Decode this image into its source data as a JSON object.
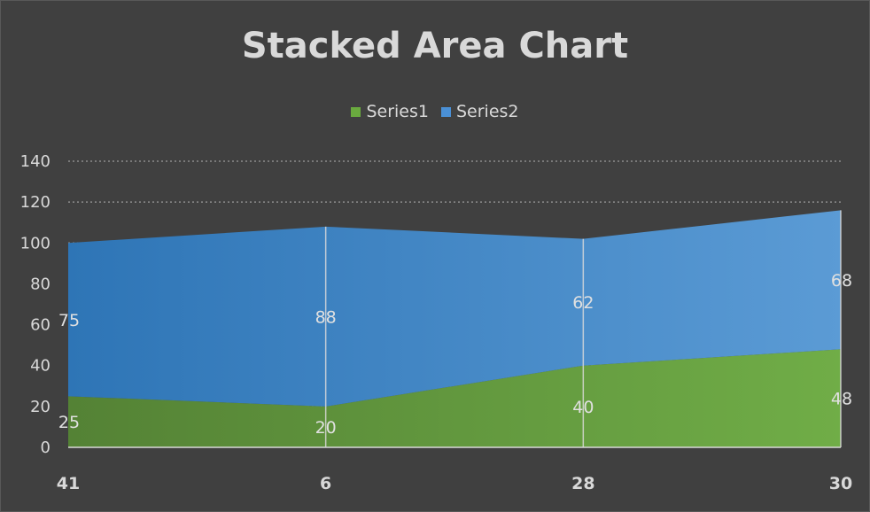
{
  "chart_data": {
    "type": "area",
    "stacked": true,
    "title": "Stacked Area Chart",
    "xlabel": "",
    "ylabel": "",
    "categories": [
      "41",
      "6",
      "28",
      "30"
    ],
    "series": [
      {
        "name": "Series1",
        "values": [
          25,
          20,
          40,
          48
        ],
        "color": "#5e9a3b"
      },
      {
        "name": "Series2",
        "values": [
          75,
          88,
          62,
          68
        ],
        "color": "#3f83c6"
      }
    ],
    "ylim": [
      0,
      140
    ],
    "yticks": [
      0,
      20,
      40,
      60,
      80,
      100,
      120,
      140
    ],
    "grid": true,
    "legend": "top",
    "data_labels": true
  }
}
